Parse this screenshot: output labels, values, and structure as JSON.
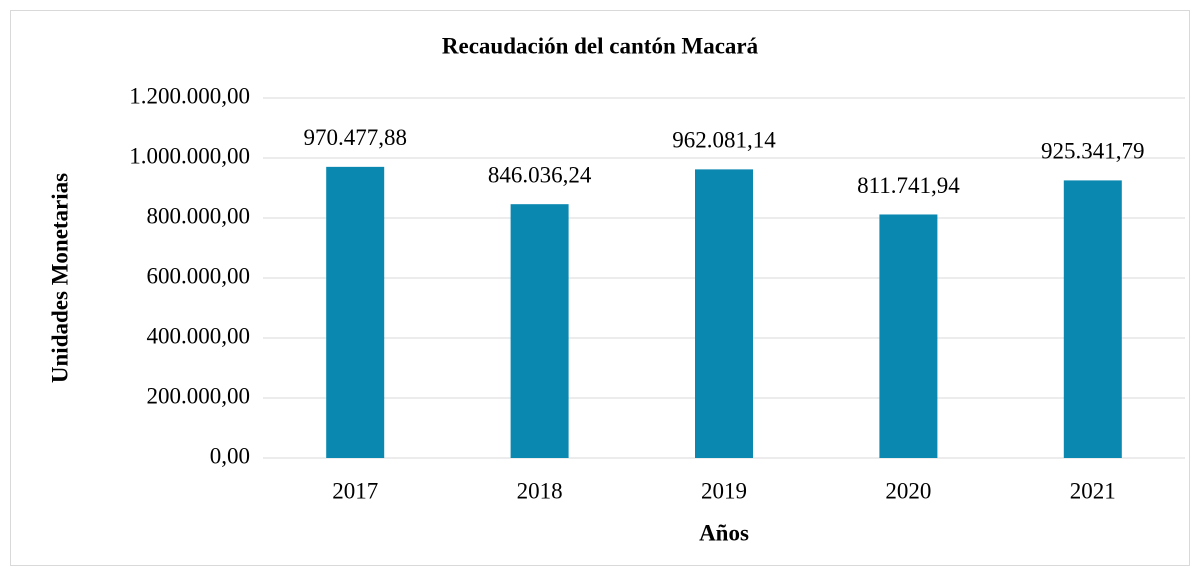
{
  "chart_data": {
    "type": "bar",
    "title": "Recaudación del cantón Macará",
    "x_label": "Años",
    "y_label": "Unidades Monetarias",
    "categories": [
      "2017",
      "2018",
      "2019",
      "2020",
      "2021"
    ],
    "values": [
      970477.88,
      846036.24,
      962081.14,
      811741.94,
      925341.79
    ],
    "value_labels": [
      "970.477,88",
      "846.036,24",
      "962.081,14",
      "811.741,94",
      "925.341,79"
    ],
    "color": "#0a88b0",
    "ylim": [
      0,
      1200000
    ],
    "yticks": [
      {
        "value": 0,
        "label": "0,00"
      },
      {
        "value": 200000,
        "label": "200.000,00"
      },
      {
        "value": 400000,
        "label": "400.000,00"
      },
      {
        "value": 600000,
        "label": "600.000,00"
      },
      {
        "value": 800000,
        "label": "800.000,00"
      },
      {
        "value": 1000000,
        "label": "1.000.000,00"
      },
      {
        "value": 1200000,
        "label": "1.200.000,00"
      }
    ],
    "grid": true
  }
}
